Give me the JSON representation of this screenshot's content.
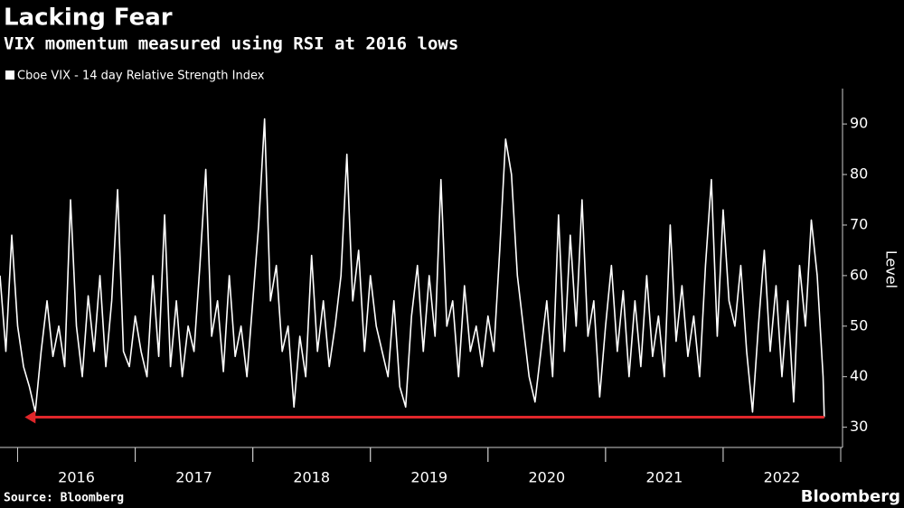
{
  "chart_data": {
    "type": "line",
    "title": "Lacking Fear",
    "subtitle": "VIX momentum measured using RSI at 2016 lows",
    "source": "Source: Bloomberg",
    "brand": "Bloomberg",
    "y_axis_label": "Level",
    "series": [
      {
        "name": "Cboe VIX - 14 day Relative Strength Index",
        "color": "#ffffff",
        "values": [
          60,
          45,
          68,
          50,
          42,
          38,
          33,
          45,
          55,
          44,
          50,
          42,
          75,
          50,
          40,
          56,
          45,
          60,
          42,
          55,
          77,
          45,
          42,
          52,
          45,
          40,
          60,
          44,
          72,
          42,
          55,
          40,
          50,
          45,
          62,
          81,
          48,
          55,
          41,
          60,
          44,
          50,
          40,
          55,
          70,
          91,
          55,
          62,
          45,
          50,
          34,
          48,
          40,
          64,
          45,
          55,
          42,
          50,
          60,
          84,
          55,
          65,
          45,
          60,
          50,
          45,
          40,
          55,
          38,
          34,
          52,
          62,
          45,
          60,
          48,
          79,
          50,
          55,
          40,
          58,
          45,
          50,
          42,
          52,
          45,
          65,
          87,
          80,
          60,
          50,
          40,
          35,
          45,
          55,
          40,
          72,
          45,
          68,
          50,
          75,
          48,
          55,
          36,
          50,
          62,
          45,
          57,
          40,
          55,
          42,
          60,
          44,
          52,
          40,
          70,
          47,
          58,
          44,
          52,
          40,
          62,
          79,
          48,
          73,
          55,
          50,
          62,
          45,
          33,
          50,
          65,
          45,
          58,
          40,
          55,
          35,
          62,
          50,
          71,
          60,
          40,
          32
        ]
      }
    ],
    "x": [
      2015.85,
      2015.9,
      2015.95,
      2016.0,
      2016.05,
      2016.1,
      2016.15,
      2016.2,
      2016.25,
      2016.3,
      2016.35,
      2016.4,
      2016.45,
      2016.5,
      2016.55,
      2016.6,
      2016.65,
      2016.7,
      2016.75,
      2016.8,
      2016.85,
      2016.9,
      2016.95,
      2017.0,
      2017.05,
      2017.1,
      2017.15,
      2017.2,
      2017.25,
      2017.3,
      2017.35,
      2017.4,
      2017.45,
      2017.5,
      2017.55,
      2017.6,
      2017.65,
      2017.7,
      2017.75,
      2017.8,
      2017.85,
      2017.9,
      2017.95,
      2018.0,
      2018.05,
      2018.1,
      2018.15,
      2018.2,
      2018.25,
      2018.3,
      2018.35,
      2018.4,
      2018.45,
      2018.5,
      2018.55,
      2018.6,
      2018.65,
      2018.7,
      2018.75,
      2018.8,
      2018.85,
      2018.9,
      2018.95,
      2019.0,
      2019.05,
      2019.1,
      2019.15,
      2019.2,
      2019.25,
      2019.3,
      2019.35,
      2019.4,
      2019.45,
      2019.5,
      2019.55,
      2019.6,
      2019.65,
      2019.7,
      2019.75,
      2019.8,
      2019.85,
      2019.9,
      2019.95,
      2020.0,
      2020.05,
      2020.1,
      2020.15,
      2020.2,
      2020.25,
      2020.3,
      2020.35,
      2020.4,
      2020.45,
      2020.5,
      2020.55,
      2020.6,
      2020.65,
      2020.7,
      2020.75,
      2020.8,
      2020.85,
      2020.9,
      2020.95,
      2021.0,
      2021.05,
      2021.1,
      2021.15,
      2021.2,
      2021.25,
      2021.3,
      2021.35,
      2021.4,
      2021.45,
      2021.5,
      2021.55,
      2021.6,
      2021.65,
      2021.7,
      2021.75,
      2021.8,
      2021.85,
      2021.9,
      2021.95,
      2022.0,
      2022.05,
      2022.1,
      2022.15,
      2022.2,
      2022.25,
      2022.3,
      2022.35,
      2022.4,
      2022.45,
      2022.5,
      2022.55,
      2022.6,
      2022.65,
      2022.7,
      2022.75,
      2022.8,
      2022.85,
      2022.86
    ],
    "xlim": [
      2015.85,
      2023.0
    ],
    "xticks": [
      {
        "value": 2016.5,
        "label": "2016"
      },
      {
        "value": 2017.5,
        "label": "2017"
      },
      {
        "value": 2018.5,
        "label": "2018"
      },
      {
        "value": 2019.5,
        "label": "2019"
      },
      {
        "value": 2020.5,
        "label": "2020"
      },
      {
        "value": 2021.5,
        "label": "2021"
      },
      {
        "value": 2022.5,
        "label": "2022"
      }
    ],
    "ylim": [
      26,
      97
    ],
    "yticks": [
      30,
      40,
      50,
      60,
      70,
      80,
      90
    ],
    "annotation_arrow": {
      "y": 32,
      "x": [
        2022.86,
        2016.06
      ],
      "color": "#e0262a"
    }
  }
}
